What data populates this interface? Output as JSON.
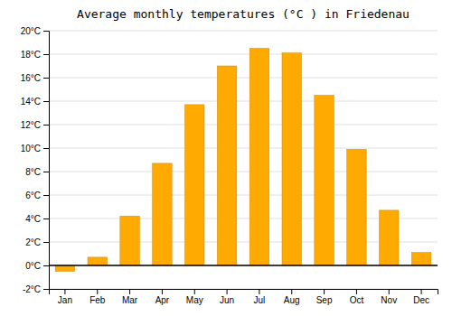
{
  "chart_data": {
    "type": "bar",
    "title": "Average monthly temperatures (°C ) in Friedenau",
    "categories": [
      "Jan",
      "Feb",
      "Mar",
      "Apr",
      "May",
      "Jun",
      "Jul",
      "Aug",
      "Sep",
      "Oct",
      "Nov",
      "Dec"
    ],
    "values": [
      -0.5,
      0.7,
      4.2,
      8.7,
      13.7,
      17.0,
      18.5,
      18.1,
      14.5,
      9.9,
      4.7,
      1.1
    ],
    "color": "#FFAA00",
    "ylim": [
      -2,
      20
    ],
    "yticks": [
      {
        "value": -2,
        "label": "-2°C"
      },
      {
        "value": 0,
        "label": "0°C"
      },
      {
        "value": 2,
        "label": "2°C"
      },
      {
        "value": 4,
        "label": "4°C"
      },
      {
        "value": 6,
        "label": "6°C"
      },
      {
        "value": 8,
        "label": "8°C"
      },
      {
        "value": 10,
        "label": "10°C"
      },
      {
        "value": 12,
        "label": "12°C"
      },
      {
        "value": 14,
        "label": "14°C"
      },
      {
        "value": 16,
        "label": "16°C"
      },
      {
        "value": 18,
        "label": "18°C"
      },
      {
        "value": 20,
        "label": "20°C"
      }
    ],
    "grid": true
  }
}
